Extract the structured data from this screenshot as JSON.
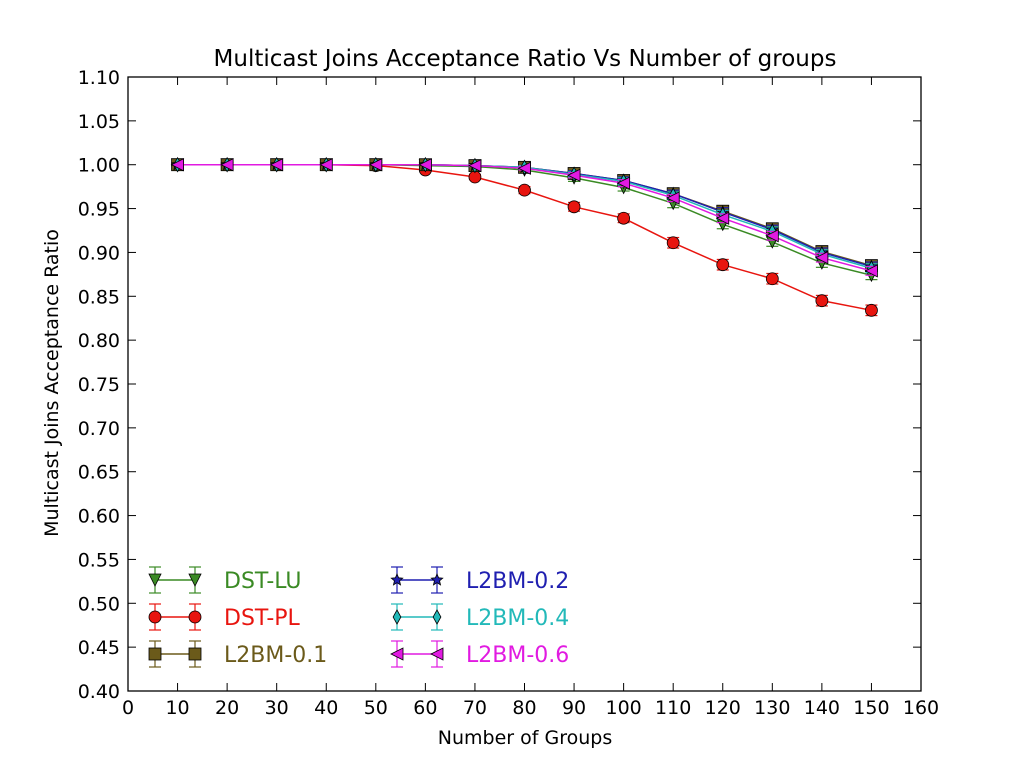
{
  "chart_data": {
    "type": "line",
    "title": "Multicast Joins Acceptance Ratio Vs Number of groups",
    "xlabel": "Number of Groups",
    "ylabel": "Multicast Joins Acceptance Ratio",
    "xlim": [
      0,
      160
    ],
    "ylim": [
      0.4,
      1.1
    ],
    "x_ticks": [
      "0",
      "10",
      "20",
      "30",
      "40",
      "50",
      "60",
      "70",
      "80",
      "90",
      "100",
      "110",
      "120",
      "130",
      "140",
      "150",
      "160"
    ],
    "y_ticks": [
      "0.40",
      "0.45",
      "0.50",
      "0.55",
      "0.60",
      "0.65",
      "0.70",
      "0.75",
      "0.80",
      "0.85",
      "0.90",
      "0.95",
      "1.00",
      "1.05",
      "1.10"
    ],
    "grid": false,
    "legend_position": "lower-left",
    "x": [
      10,
      20,
      30,
      40,
      50,
      60,
      70,
      80,
      90,
      100,
      110,
      120,
      130,
      140,
      150
    ],
    "series": [
      {
        "name": "DST-LU",
        "color": "#3a8a24",
        "marker": "triangle-down",
        "values": [
          1.0,
          1.0,
          1.0,
          1.0,
          1.0,
          0.999,
          0.998,
          0.994,
          0.985,
          0.974,
          0.956,
          0.932,
          0.912,
          0.888,
          0.874
        ],
        "error": [
          0.0,
          0.0,
          0.0,
          0.0,
          0.0,
          0.001,
          0.002,
          0.003,
          0.004,
          0.004,
          0.005,
          0.005,
          0.005,
          0.005,
          0.005
        ]
      },
      {
        "name": "DST-PL",
        "color": "#e8150f",
        "marker": "circle",
        "values": [
          1.0,
          1.0,
          1.0,
          1.0,
          0.999,
          0.994,
          0.986,
          0.971,
          0.952,
          0.939,
          0.911,
          0.886,
          0.87,
          0.845,
          0.834
        ],
        "error": [
          0.0,
          0.0,
          0.0,
          0.0,
          0.001,
          0.002,
          0.003,
          0.004,
          0.005,
          0.005,
          0.006,
          0.006,
          0.006,
          0.006,
          0.006
        ]
      },
      {
        "name": "L2BM-0.1",
        "color": "#6b5a1a",
        "marker": "square",
        "values": [
          1.0,
          1.0,
          1.0,
          1.0,
          1.0,
          1.0,
          0.999,
          0.997,
          0.99,
          0.982,
          0.967,
          0.947,
          0.927,
          0.901,
          0.885
        ],
        "error": [
          0.0,
          0.0,
          0.0,
          0.0,
          0.0,
          0.0,
          0.001,
          0.002,
          0.003,
          0.004,
          0.004,
          0.005,
          0.005,
          0.005,
          0.005
        ]
      },
      {
        "name": "L2BM-0.2",
        "color": "#1f1fb0",
        "marker": "star",
        "values": [
          1.0,
          1.0,
          1.0,
          1.0,
          1.0,
          1.0,
          0.999,
          0.997,
          0.99,
          0.982,
          0.967,
          0.946,
          0.926,
          0.9,
          0.884
        ],
        "error": [
          0.0,
          0.0,
          0.0,
          0.0,
          0.0,
          0.0,
          0.001,
          0.002,
          0.003,
          0.004,
          0.004,
          0.005,
          0.005,
          0.005,
          0.005
        ]
      },
      {
        "name": "L2BM-0.4",
        "color": "#22b9b9",
        "marker": "thin-diamond",
        "values": [
          1.0,
          1.0,
          1.0,
          1.0,
          1.0,
          1.0,
          0.999,
          0.997,
          0.989,
          0.981,
          0.965,
          0.943,
          0.924,
          0.898,
          0.882
        ],
        "error": [
          0.0,
          0.0,
          0.0,
          0.0,
          0.0,
          0.0,
          0.001,
          0.002,
          0.003,
          0.004,
          0.004,
          0.005,
          0.005,
          0.005,
          0.005
        ]
      },
      {
        "name": "L2BM-0.6",
        "color": "#e11ae1",
        "marker": "triangle-left",
        "values": [
          1.0,
          1.0,
          1.0,
          1.0,
          1.0,
          1.0,
          0.999,
          0.996,
          0.988,
          0.979,
          0.962,
          0.939,
          0.919,
          0.894,
          0.879
        ],
        "error": [
          0.0,
          0.0,
          0.0,
          0.0,
          0.0,
          0.0,
          0.001,
          0.002,
          0.003,
          0.004,
          0.004,
          0.005,
          0.005,
          0.005,
          0.005
        ]
      }
    ]
  }
}
